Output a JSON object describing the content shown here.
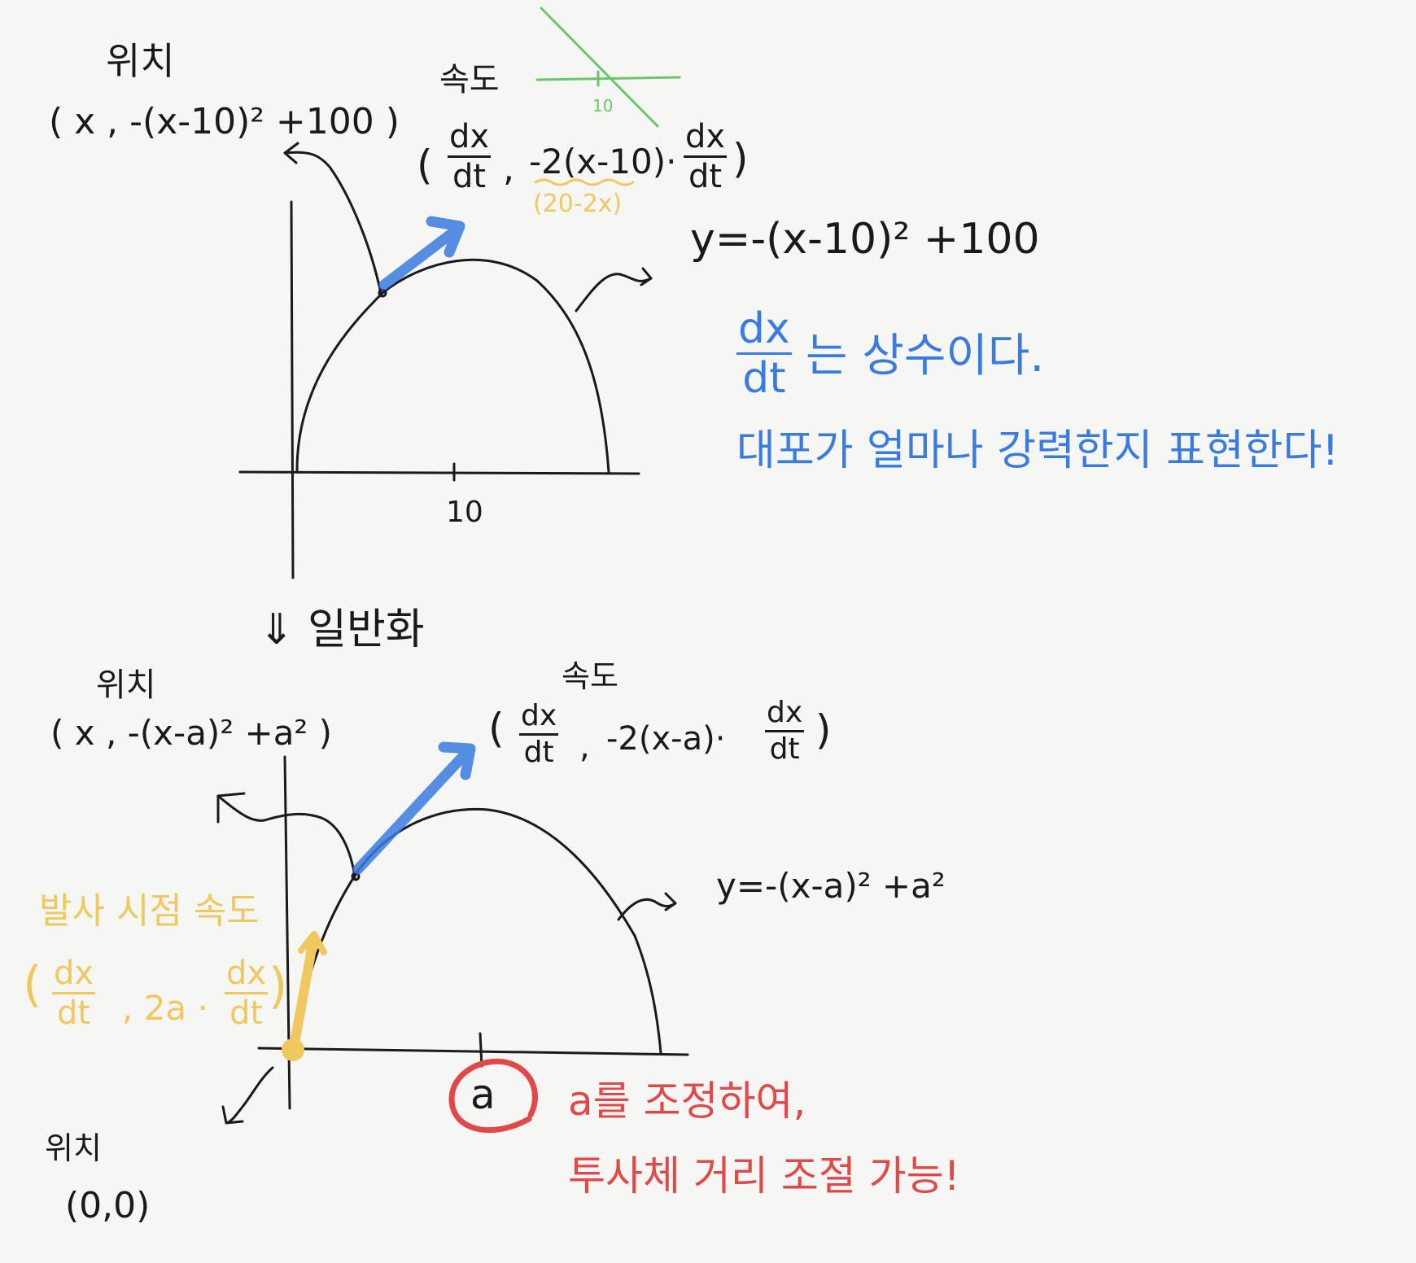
{
  "labels": {
    "position": "위치",
    "velocity": "속도",
    "generalize": "⇓ 일반화",
    "launch_velocity": "발사 시점 속도"
  },
  "top": {
    "position_expr": "( x , -(x-10)² +100 )",
    "velocity_open": "(",
    "velocity_comma": ",",
    "velocity_y": "-2(x-10)·",
    "velocity_close": ")",
    "underbrace_note": "(20-2x)",
    "curve_eq": "y=-(x-10)² +100",
    "tick_label": "10",
    "green_tick_label": "10",
    "blue_note_1_suffix": "는 상수이다.",
    "blue_note_2": "대포가 얼마나 강력한지 표현한다!"
  },
  "bottom": {
    "position_expr": "( x , -(x-a)² +a² )",
    "velocity_open": "(",
    "velocity_comma": ",",
    "velocity_y": "-2(x-a)·",
    "velocity_close": ")",
    "curve_eq": "y=-(x-a)² +a²",
    "tick_label": "a",
    "launch_open": "(",
    "launch_mid": ", 2a ·",
    "launch_close": ")",
    "origin_position": "(0,0)",
    "red_note_1": "a를 조정하여,",
    "red_note_2": "투사체 거리 조절 가능!"
  },
  "frac": {
    "num": "dx",
    "den": "dt"
  },
  "colors": {
    "ink": "#1a1a1a",
    "blue": "#3a7be0",
    "gold": "#f0c860",
    "red": "#e0484a",
    "green": "#6cc46c"
  }
}
